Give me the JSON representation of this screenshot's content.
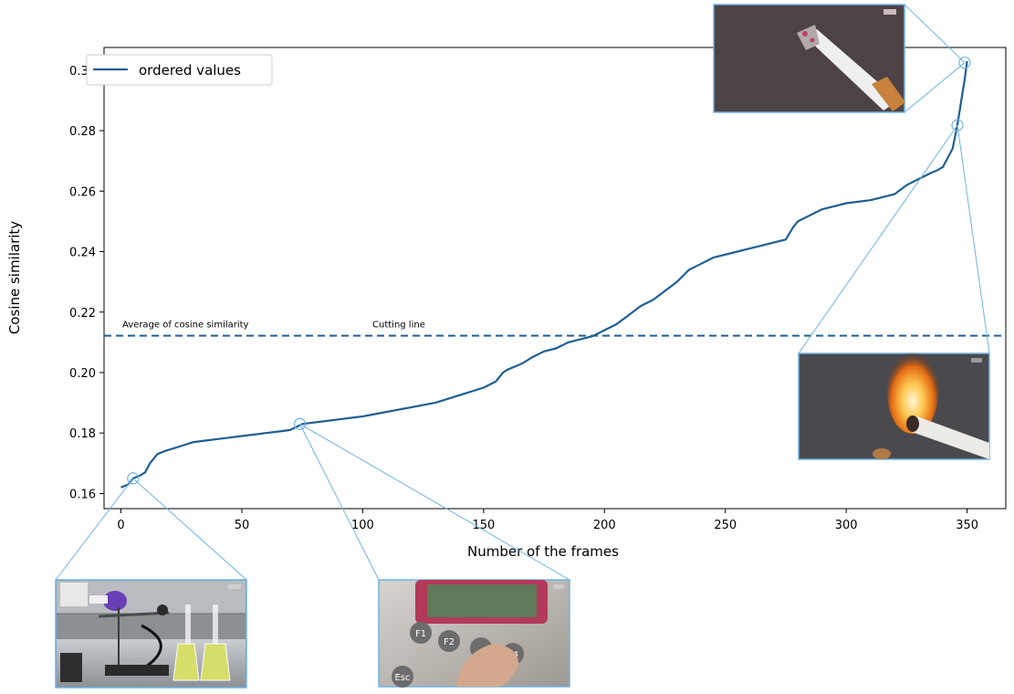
{
  "chart_data": {
    "type": "line",
    "xlabel": "Number of the frames",
    "ylabel": "Cosine similarity",
    "xlim": [
      -7,
      366
    ],
    "ylim": [
      0.155,
      0.3075
    ],
    "x_ticks": [
      0,
      50,
      100,
      150,
      200,
      250,
      300,
      350
    ],
    "y_ticks": [
      0.16,
      0.18,
      0.2,
      0.22,
      0.24,
      0.26,
      0.28,
      0.3
    ],
    "x_tick_labels": [
      "0",
      "50",
      "100",
      "150",
      "200",
      "250",
      "300",
      "350"
    ],
    "y_tick_labels": [
      "0.16",
      "0.18",
      "0.20",
      "0.22",
      "0.24",
      "0.26",
      "0.28",
      "0.30"
    ],
    "grid": false,
    "legend_position": "top-left",
    "series": [
      {
        "name": "ordered values",
        "color": "#1f5f93",
        "x": [
          0,
          3,
          5,
          8,
          10,
          12,
          15,
          18,
          22,
          26,
          30,
          35,
          40,
          45,
          50,
          55,
          60,
          65,
          70,
          75,
          80,
          90,
          100,
          110,
          120,
          130,
          140,
          150,
          155,
          158,
          160,
          163,
          166,
          170,
          175,
          180,
          185,
          190,
          195,
          200,
          205,
          210,
          215,
          220,
          225,
          230,
          235,
          240,
          245,
          250,
          255,
          260,
          265,
          270,
          275,
          278,
          280,
          285,
          290,
          295,
          300,
          305,
          310,
          315,
          320,
          325,
          330,
          335,
          338,
          340,
          342,
          344,
          345,
          346,
          347,
          348,
          349,
          350
        ],
        "y": [
          0.162,
          0.163,
          0.165,
          0.166,
          0.167,
          0.17,
          0.173,
          0.174,
          0.175,
          0.176,
          0.177,
          0.1775,
          0.178,
          0.1785,
          0.179,
          0.1795,
          0.18,
          0.1805,
          0.181,
          0.183,
          0.1835,
          0.1845,
          0.1855,
          0.187,
          0.1885,
          0.19,
          0.1925,
          0.195,
          0.197,
          0.2,
          0.201,
          0.202,
          0.203,
          0.205,
          0.207,
          0.208,
          0.21,
          0.211,
          0.212,
          0.214,
          0.216,
          0.219,
          0.222,
          0.224,
          0.227,
          0.23,
          0.234,
          0.236,
          0.238,
          0.239,
          0.24,
          0.241,
          0.242,
          0.243,
          0.244,
          0.248,
          0.25,
          0.252,
          0.254,
          0.255,
          0.256,
          0.2565,
          0.257,
          0.258,
          0.259,
          0.262,
          0.264,
          0.266,
          0.267,
          0.268,
          0.271,
          0.274,
          0.278,
          0.282,
          0.287,
          0.292,
          0.297,
          0.303
        ]
      }
    ],
    "reference_line": {
      "y": 0.2122,
      "style": "dashed",
      "color": "#1f5f93",
      "labels": [
        "Average of cosine similarity",
        "Cutting line"
      ]
    },
    "callouts": [
      {
        "x": 5,
        "y": 0.165,
        "thumbnail": "lab-apparatus-photo"
      },
      {
        "x": 74,
        "y": 0.183,
        "thumbnail": "keypad-photo"
      },
      {
        "x": 346,
        "y": 0.2818,
        "thumbnail": "lit-cigarette-photo"
      },
      {
        "x": 349,
        "y": 0.3025,
        "thumbnail": "cigarette-photo"
      }
    ]
  }
}
